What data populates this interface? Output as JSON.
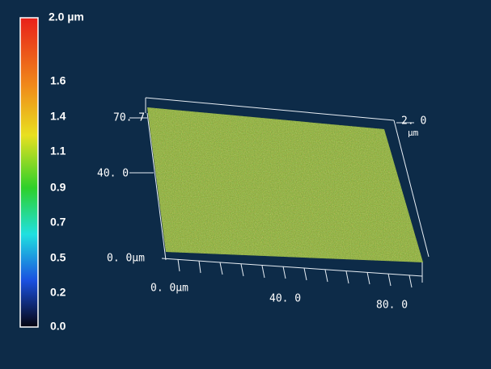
{
  "colorbar": {
    "labels": [
      "2.0 µm",
      "1.6",
      "1.4",
      "1.1",
      "0.9",
      "0.7",
      "0.5",
      "0.2",
      "0.0"
    ]
  },
  "axes": {
    "y_labels": [
      "70. 7",
      "40. 0",
      "0. 0µm"
    ],
    "x_labels": [
      "0. 0µm",
      "40. 0",
      "80. 0"
    ],
    "z_labels": [
      "2. 0",
      "µm"
    ]
  }
}
